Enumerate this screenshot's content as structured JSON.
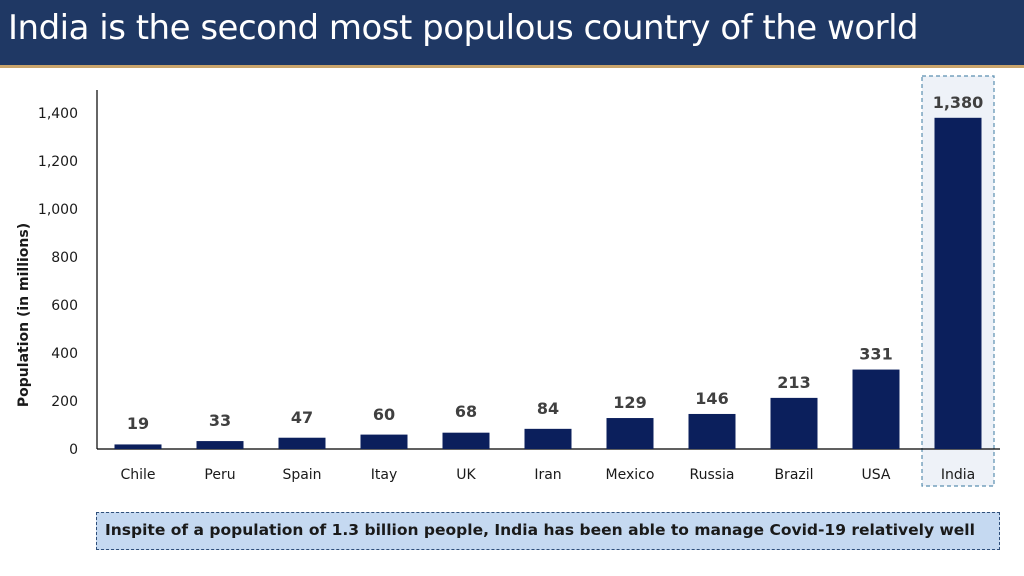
{
  "title": "India is the second most populous country of the world",
  "footer_note": "Inspite of a population of 1.3 billion people, India has been able to manage Covid-19 relatively well",
  "colors": {
    "title_bg": "#1f3864",
    "bar": "#0b1f5c",
    "highlight_bg": "#eef2f8",
    "highlight_border": "#5b8fb0",
    "footer_bg": "#c5d9f1"
  },
  "chart_data": {
    "type": "bar",
    "categories": [
      "Chile",
      "Peru",
      "Spain",
      "Itay",
      "UK",
      "Iran",
      "Mexico",
      "Russia",
      "Brazil",
      "USA",
      "India"
    ],
    "values": [
      19,
      33,
      47,
      60,
      68,
      84,
      129,
      146,
      213,
      331,
      1380
    ],
    "data_labels": [
      "19",
      "33",
      "47",
      "60",
      "68",
      "84",
      "129",
      "146",
      "213",
      "331",
      "1,380"
    ],
    "ylabel": "Population (in millions)",
    "yticks": [
      0,
      200,
      400,
      600,
      800,
      1000,
      1200,
      1400
    ],
    "ytick_labels": [
      "0",
      "200",
      "400",
      "600",
      "800",
      "1,000",
      "1,200",
      "1,400"
    ],
    "ylim": [
      0,
      1400
    ],
    "grid": false,
    "highlight_category": "India"
  }
}
